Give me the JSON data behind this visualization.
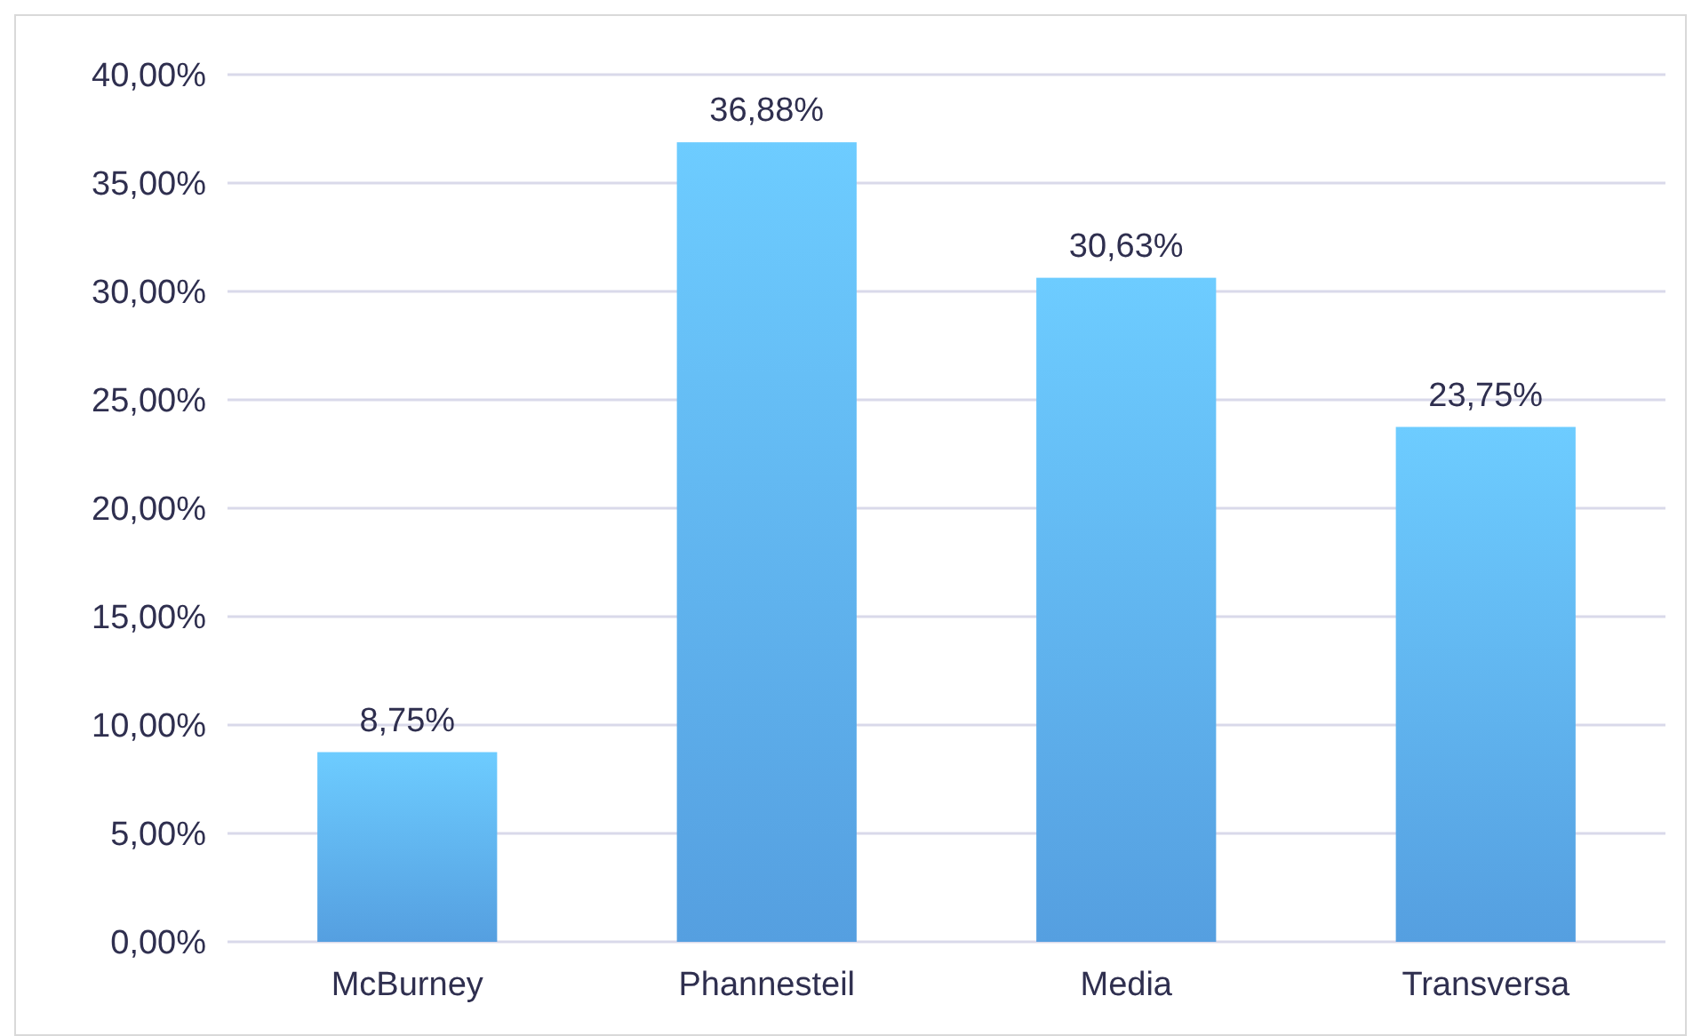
{
  "chart_data": {
    "type": "bar",
    "categories": [
      "McBurney",
      "Phannesteil",
      "Media",
      "Transversa"
    ],
    "values": [
      8.75,
      36.88,
      30.63,
      23.75
    ],
    "value_labels": [
      "8,75%",
      "36,88%",
      "30,63%",
      "23,75%"
    ],
    "color": "#559fe0",
    "ylim": [
      0,
      40
    ],
    "yticks": [
      {
        "value": 0,
        "label": "0,00%"
      },
      {
        "value": 5,
        "label": "5,00%"
      },
      {
        "value": 10,
        "label": "10,00%"
      },
      {
        "value": 15,
        "label": "15,00%"
      },
      {
        "value": 20,
        "label": "20,00%"
      },
      {
        "value": 25,
        "label": "25,00%"
      },
      {
        "value": 30,
        "label": "30,00%"
      },
      {
        "value": 35,
        "label": "35,00%"
      },
      {
        "value": 40,
        "label": "40,00%"
      }
    ],
    "grid": "y"
  }
}
